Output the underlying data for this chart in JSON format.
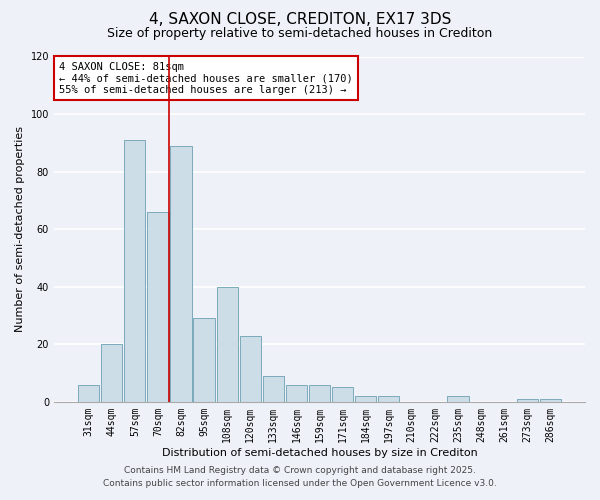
{
  "title": "4, SAXON CLOSE, CREDITON, EX17 3DS",
  "subtitle": "Size of property relative to semi-detached houses in Crediton",
  "xlabel": "Distribution of semi-detached houses by size in Crediton",
  "ylabel": "Number of semi-detached properties",
  "bar_labels": [
    "31sqm",
    "44sqm",
    "57sqm",
    "70sqm",
    "82sqm",
    "95sqm",
    "108sqm",
    "120sqm",
    "133sqm",
    "146sqm",
    "159sqm",
    "171sqm",
    "184sqm",
    "197sqm",
    "210sqm",
    "222sqm",
    "235sqm",
    "248sqm",
    "261sqm",
    "273sqm",
    "286sqm"
  ],
  "bar_values": [
    6,
    20,
    91,
    66,
    89,
    29,
    40,
    23,
    9,
    6,
    6,
    5,
    2,
    2,
    0,
    0,
    2,
    0,
    0,
    1,
    1
  ],
  "bar_color": "#ccdde8",
  "bar_edge_color": "#7aaabb",
  "highlight_index": 4,
  "highlight_line_color": "#cc0000",
  "annotation_text": "4 SAXON CLOSE: 81sqm\n← 44% of semi-detached houses are smaller (170)\n55% of semi-detached houses are larger (213) →",
  "annotation_box_color": "#ffffff",
  "annotation_box_edge_color": "#cc0000",
  "ylim": [
    0,
    120
  ],
  "yticks": [
    0,
    20,
    40,
    60,
    80,
    100,
    120
  ],
  "footer_line1": "Contains HM Land Registry data © Crown copyright and database right 2025.",
  "footer_line2": "Contains public sector information licensed under the Open Government Licence v3.0.",
  "background_color": "#eef2f8",
  "grid_color": "#ffffff",
  "title_fontsize": 11,
  "subtitle_fontsize": 9,
  "axis_label_fontsize": 8,
  "tick_fontsize": 7,
  "annotation_fontsize": 7.5,
  "footer_fontsize": 6.5
}
